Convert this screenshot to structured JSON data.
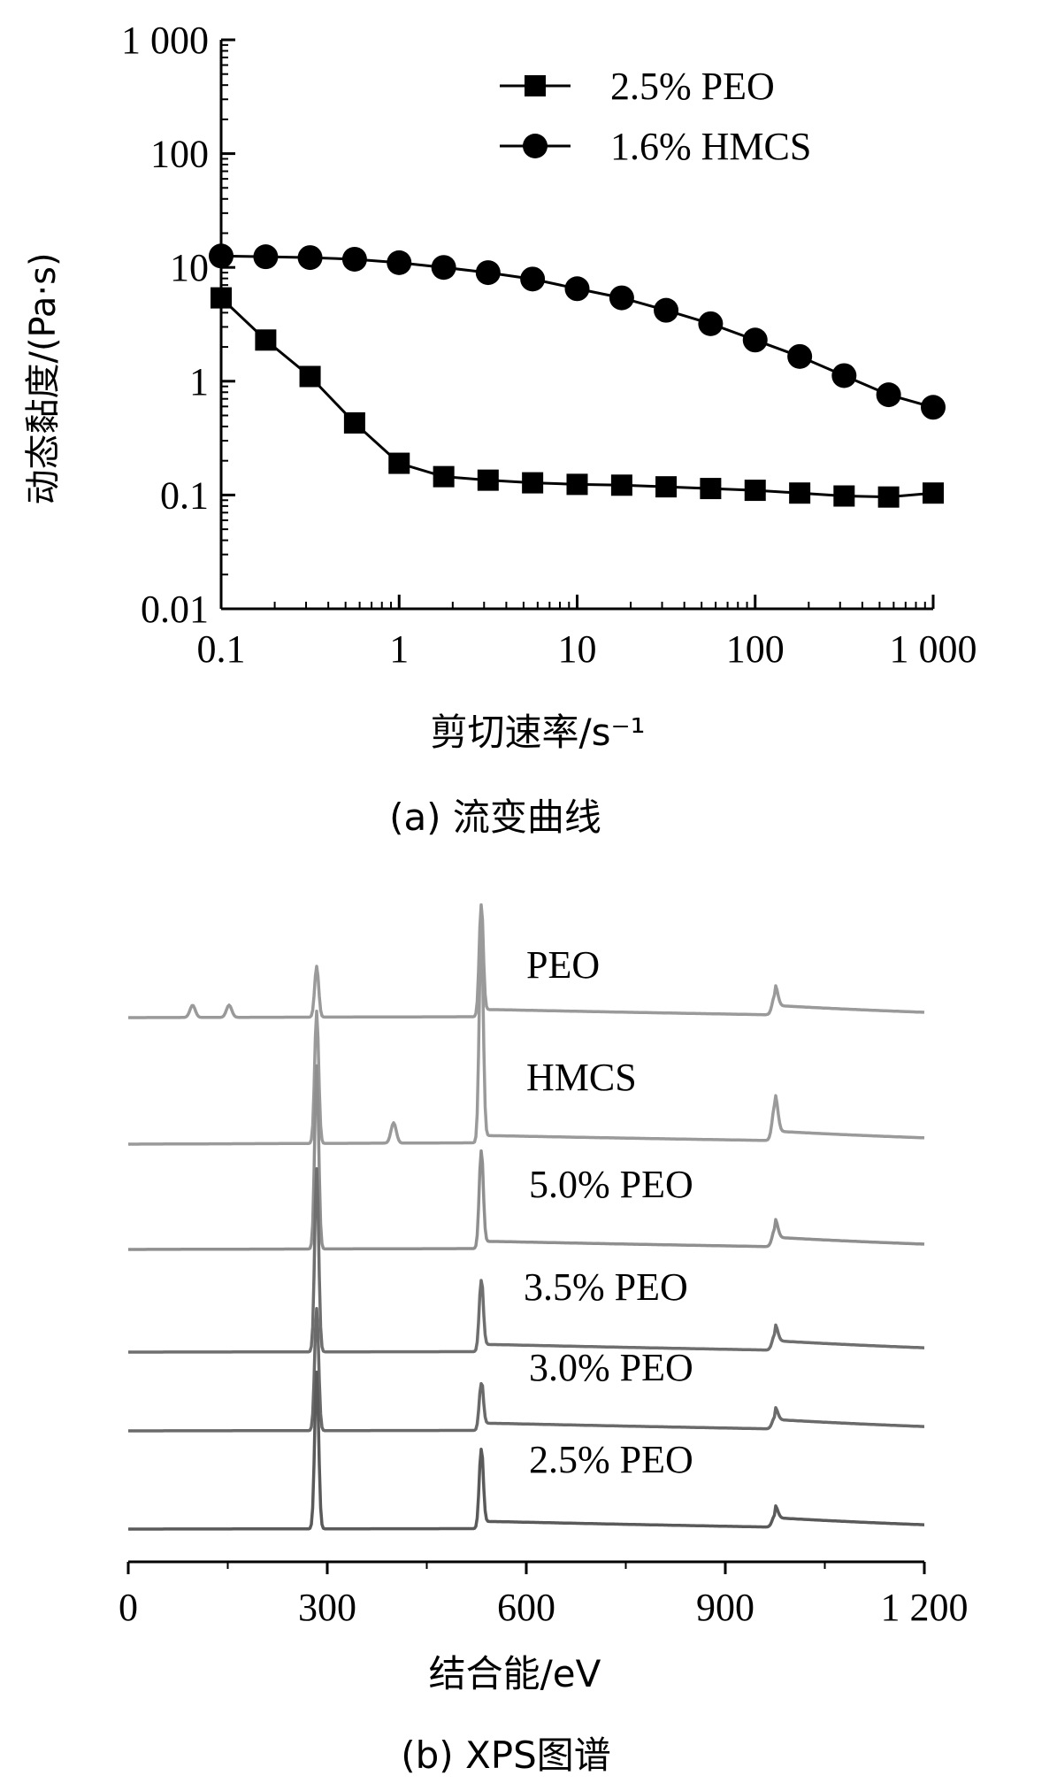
{
  "chart_data": [
    {
      "type": "line",
      "caption": "(a) 流变曲线",
      "xlabel": "剪切速率/s⁻¹",
      "ylabel": "动态黏度/(Pa·s)",
      "xscale": "log",
      "yscale": "log",
      "xlim": [
        0.1,
        1000
      ],
      "ylim": [
        0.01,
        1000
      ],
      "xticks": [
        "0.1",
        "1",
        "10",
        "100",
        "1 000"
      ],
      "yticks": [
        "0.01",
        "0.1",
        "1",
        "10",
        "100",
        "1 000"
      ],
      "legend_position": "top-right",
      "grid": false,
      "series": [
        {
          "name": "2.5% PEO",
          "marker": "square",
          "color": "#000000",
          "x": [
            0.1,
            0.178,
            0.316,
            0.562,
            1,
            1.78,
            3.16,
            5.62,
            10,
            17.8,
            31.6,
            56.2,
            100,
            178,
            316,
            562,
            1000
          ],
          "y": [
            5.4,
            2.3,
            1.1,
            0.43,
            0.19,
            0.145,
            0.135,
            0.128,
            0.124,
            0.122,
            0.118,
            0.114,
            0.11,
            0.104,
            0.098,
            0.096,
            0.104
          ]
        },
        {
          "name": "1.6% HMCS",
          "marker": "circle",
          "color": "#000000",
          "x": [
            0.1,
            0.178,
            0.316,
            0.562,
            1,
            1.78,
            3.16,
            5.62,
            10,
            17.8,
            31.6,
            56.2,
            100,
            178,
            316,
            562,
            1000
          ],
          "y": [
            12.6,
            12.4,
            12.2,
            11.8,
            11,
            10,
            9,
            7.9,
            6.5,
            5.4,
            4.2,
            3.2,
            2.3,
            1.65,
            1.12,
            0.76,
            0.59
          ]
        }
      ]
    },
    {
      "type": "line",
      "caption": "(b) XPS图谱",
      "xlabel": "结合能/eV",
      "xlim": [
        0,
        1200
      ],
      "xticks": [
        "0",
        "300",
        "600",
        "900",
        "1 200"
      ],
      "y_axis_shown": false,
      "series": [
        {
          "name": "PEO",
          "color": "#9a9a9a",
          "baseline": 0.85,
          "peaks": [
            {
              "x": 97,
              "h": 0.6
            },
            {
              "x": 152,
              "h": 0.6
            },
            {
              "x": 284,
              "h": 2.5
            },
            {
              "x": 532,
              "h": 5.5
            },
            {
              "x": 975,
              "h": 1.0
            }
          ],
          "tail_end": 0.95
        },
        {
          "name": "HMCS",
          "color": "#9a9a9a",
          "baseline": 0.85,
          "peaks": [
            {
              "x": 284,
              "h": 6.5
            },
            {
              "x": 400,
              "h": 1.0
            },
            {
              "x": 532,
              "h": 10.5
            },
            {
              "x": 975,
              "h": 1.8
            }
          ],
          "tail_end": 1.0
        },
        {
          "name": "5.0% PEO",
          "color": "#8f8f8f",
          "baseline": 0.85,
          "peaks": [
            {
              "x": 284,
              "h": 9.0
            },
            {
              "x": 532,
              "h": 4.8
            },
            {
              "x": 975,
              "h": 0.9
            }
          ],
          "tail_end": 0.95
        },
        {
          "name": "3.5% PEO",
          "color": "#6f6f6f",
          "baseline": 0.85,
          "peaks": [
            {
              "x": 284,
              "h": 9.0
            },
            {
              "x": 532,
              "h": 3.5
            },
            {
              "x": 975,
              "h": 0.8
            }
          ],
          "tail_end": 0.9
        },
        {
          "name": "3.0% PEO",
          "color": "#6a6a6a",
          "baseline": 0.85,
          "peaks": [
            {
              "x": 284,
              "h": 6.0
            },
            {
              "x": 532,
              "h": 2.3
            },
            {
              "x": 975,
              "h": 0.6
            }
          ],
          "tail_end": 0.9
        },
        {
          "name": "2.5% PEO",
          "color": "#5a5a5a",
          "baseline": 0.85,
          "peaks": [
            {
              "x": 284,
              "h": 7.7
            },
            {
              "x": 532,
              "h": 3.9
            },
            {
              "x": 975,
              "h": 0.6
            }
          ],
          "tail_end": 0.9
        }
      ]
    }
  ]
}
